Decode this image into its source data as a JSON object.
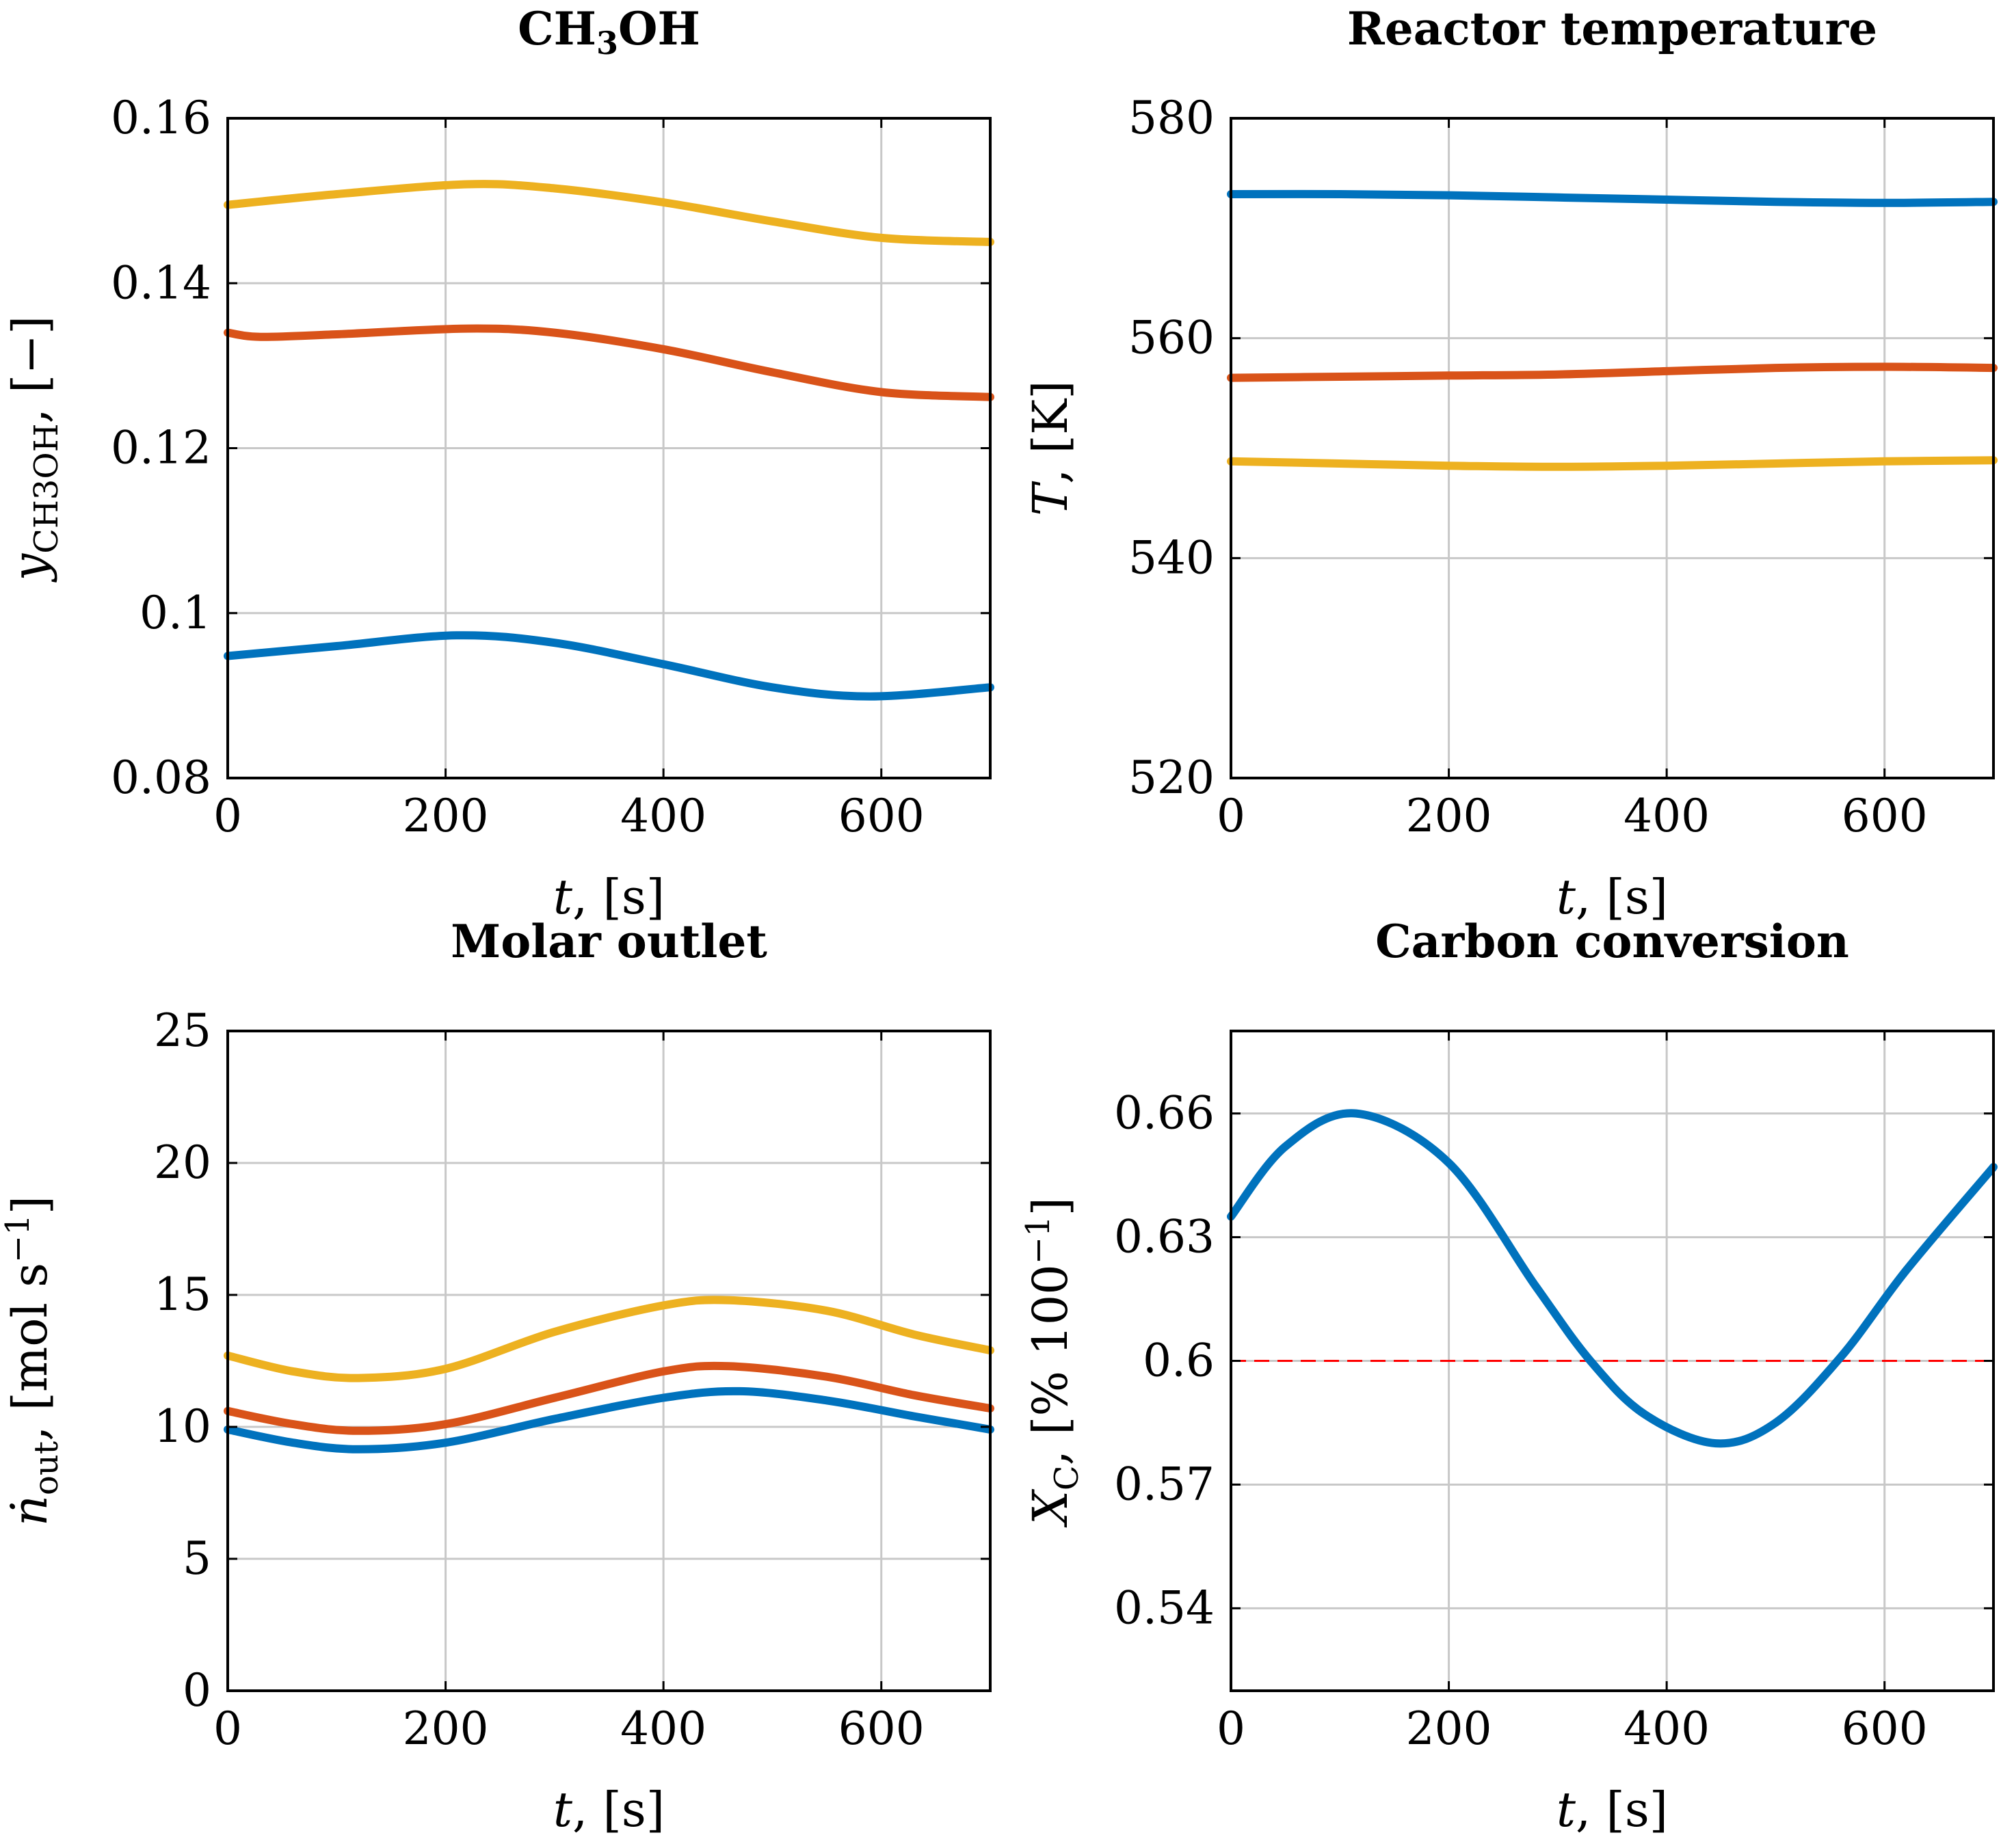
{
  "chart_data": [
    {
      "type": "line",
      "title": "CH3OH",
      "title_main": "CH",
      "title_sub": "3",
      "title_rest": "OH",
      "xlabel": "t, [s]",
      "xlabel_var": "t",
      "xlabel_unit": ", [s]",
      "ylabel": "yCH3OH, [−]",
      "ylabel_var": "y",
      "ylabel_sub": "CH3OH",
      "ylabel_unit": ", [−]",
      "xlim": [
        0,
        700
      ],
      "ylim": [
        0.08,
        0.16
      ],
      "xticks": [
        0,
        200,
        400,
        600
      ],
      "xtick_labels": [
        "0",
        "200",
        "400",
        "600"
      ],
      "yticks": [
        0.08,
        0.1,
        0.12,
        0.14,
        0.16
      ],
      "ytick_labels": [
        "0.08",
        "0.1",
        "0.12",
        "0.14",
        "0.16"
      ],
      "grid": true,
      "series": [
        {
          "name": "yellow",
          "color": "#edb120",
          "x": [
            0,
            100,
            220,
            300,
            400,
            500,
            600,
            700
          ],
          "y": [
            0.1495,
            0.1508,
            0.152,
            0.1515,
            0.1498,
            0.1475,
            0.1455,
            0.145
          ]
        },
        {
          "name": "orange",
          "color": "#d95319",
          "x": [
            0,
            30,
            100,
            220,
            300,
            400,
            500,
            600,
            700
          ],
          "y": [
            0.134,
            0.1335,
            0.1338,
            0.1345,
            0.134,
            0.132,
            0.1292,
            0.1268,
            0.1262
          ]
        },
        {
          "name": "blue",
          "color": "#0072bd",
          "x": [
            0,
            100,
            210,
            300,
            400,
            500,
            590,
            700
          ],
          "y": [
            0.0948,
            0.096,
            0.0973,
            0.0964,
            0.0938,
            0.091,
            0.0899,
            0.091
          ]
        }
      ]
    },
    {
      "type": "line",
      "title": "Reactor temperature",
      "xlabel": "t, [s]",
      "xlabel_var": "t",
      "xlabel_unit": ", [s]",
      "ylabel": "T, [K]",
      "ylabel_var": "T",
      "ylabel_unit": ", [K]",
      "xlim": [
        0,
        700
      ],
      "ylim": [
        520,
        580
      ],
      "xticks": [
        0,
        200,
        400,
        600
      ],
      "xtick_labels": [
        "0",
        "200",
        "400",
        "600"
      ],
      "yticks": [
        520,
        540,
        560,
        580
      ],
      "ytick_labels": [
        "520",
        "540",
        "560",
        "580"
      ],
      "grid": true,
      "series": [
        {
          "name": "blue",
          "color": "#0072bd",
          "x": [
            0,
            100,
            200,
            300,
            400,
            500,
            600,
            700
          ],
          "y": [
            573.1,
            573.1,
            573.0,
            572.8,
            572.6,
            572.4,
            572.3,
            572.4
          ]
        },
        {
          "name": "orange",
          "color": "#d95319",
          "x": [
            0,
            100,
            200,
            300,
            400,
            500,
            600,
            700
          ],
          "y": [
            556.4,
            556.5,
            556.6,
            556.7,
            557.0,
            557.3,
            557.4,
            557.3
          ]
        },
        {
          "name": "yellow",
          "color": "#edb120",
          "x": [
            0,
            100,
            200,
            300,
            400,
            500,
            600,
            700
          ],
          "y": [
            548.8,
            548.6,
            548.4,
            548.3,
            548.4,
            548.6,
            548.8,
            548.9
          ]
        }
      ]
    },
    {
      "type": "line",
      "title": "Molar outlet",
      "xlabel": "t, [s]",
      "xlabel_var": "t",
      "xlabel_unit": ", [s]",
      "ylabel": "ṅout, [mol s−1]",
      "ylabel_var": "ṅ",
      "ylabel_sub": "out",
      "ylabel_unit": ", [mol s",
      "ylabel_sup": "−1",
      "ylabel_close": "]",
      "xlim": [
        0,
        700
      ],
      "ylim": [
        0,
        25
      ],
      "xticks": [
        0,
        200,
        400,
        600
      ],
      "xtick_labels": [
        "0",
        "200",
        "400",
        "600"
      ],
      "yticks": [
        0,
        5,
        10,
        15,
        20,
        25
      ],
      "ytick_labels": [
        "0",
        "5",
        "10",
        "15",
        "20",
        "25"
      ],
      "grid": true,
      "series": [
        {
          "name": "yellow",
          "color": "#edb120",
          "x": [
            0,
            60,
            120,
            200,
            300,
            400,
            460,
            550,
            630,
            700
          ],
          "y": [
            12.7,
            12.1,
            11.85,
            12.2,
            13.6,
            14.6,
            14.8,
            14.4,
            13.5,
            12.9
          ]
        },
        {
          "name": "orange",
          "color": "#d95319",
          "x": [
            0,
            60,
            120,
            200,
            300,
            400,
            460,
            550,
            630,
            700
          ],
          "y": [
            10.6,
            10.1,
            9.85,
            10.1,
            11.1,
            12.1,
            12.3,
            11.9,
            11.2,
            10.7
          ]
        },
        {
          "name": "blue",
          "color": "#0072bd",
          "x": [
            0,
            60,
            120,
            200,
            300,
            400,
            470,
            550,
            630,
            700
          ],
          "y": [
            9.9,
            9.4,
            9.15,
            9.4,
            10.3,
            11.1,
            11.35,
            11.0,
            10.4,
            9.9
          ]
        }
      ]
    },
    {
      "type": "line",
      "title": "Carbon conversion",
      "xlabel": "t, [s]",
      "xlabel_var": "t",
      "xlabel_unit": ", [s]",
      "ylabel": "XC, [% 100−1]",
      "ylabel_var": "X",
      "ylabel_sub": "C",
      "ylabel_unit": ", [% 100",
      "ylabel_sup": "−1",
      "ylabel_close": "]",
      "xlim": [
        0,
        700
      ],
      "ylim": [
        0.52,
        0.68
      ],
      "xticks": [
        0,
        200,
        400,
        600
      ],
      "xtick_labels": [
        "0",
        "200",
        "400",
        "600"
      ],
      "yticks": [
        0.54,
        0.57,
        0.6,
        0.63,
        0.66
      ],
      "ytick_labels": [
        "0.54",
        "0.57",
        "0.6",
        "0.63",
        "0.66"
      ],
      "grid": true,
      "reference_line": {
        "y": 0.6,
        "color": "#ff0000",
        "style": "dashed"
      },
      "series": [
        {
          "name": "blue",
          "color": "#0072bd",
          "x": [
            0,
            50,
            115,
            200,
            280,
            330,
            380,
            445,
            500,
            560,
            620,
            700
          ],
          "y": [
            0.635,
            0.652,
            0.66,
            0.648,
            0.618,
            0.6,
            0.587,
            0.58,
            0.585,
            0.601,
            0.622,
            0.647
          ]
        }
      ]
    }
  ]
}
